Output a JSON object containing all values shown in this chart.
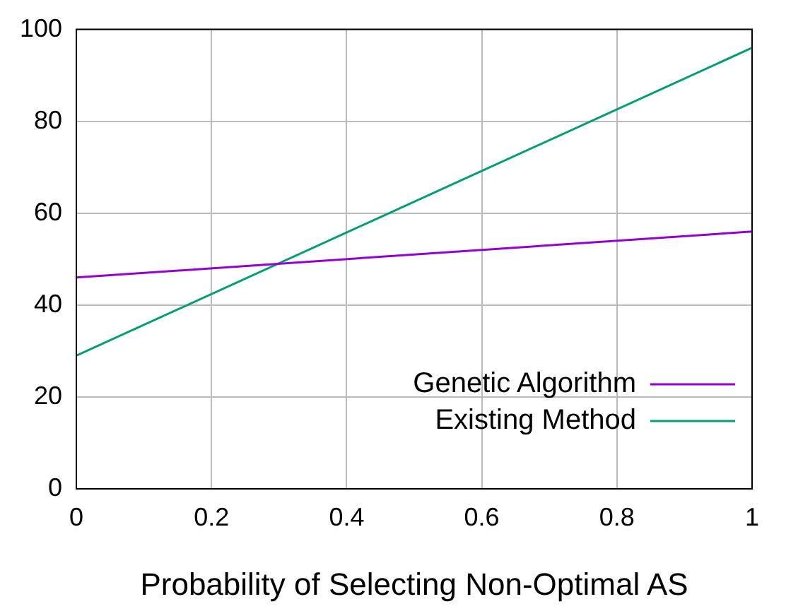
{
  "chart_data": {
    "type": "line",
    "xlabel": "Probability of Selecting Non-Optimal AS",
    "x": [
      0,
      1
    ],
    "series": [
      {
        "name": "Genetic Algorithm",
        "color": "#9400d3",
        "values": [
          46,
          56
        ]
      },
      {
        "name": "Existing Method",
        "color": "#009e73",
        "values": [
          29,
          96
        ]
      }
    ],
    "xlim": [
      0,
      1
    ],
    "xticks": [
      0,
      0.2,
      0.4,
      0.6,
      0.8,
      1
    ],
    "ylim": [
      0,
      100
    ],
    "yticks": [
      0,
      20,
      40,
      60,
      80,
      100
    ],
    "grid": true,
    "legend": "bottom right",
    "marker": "none",
    "line_style": "solid"
  }
}
